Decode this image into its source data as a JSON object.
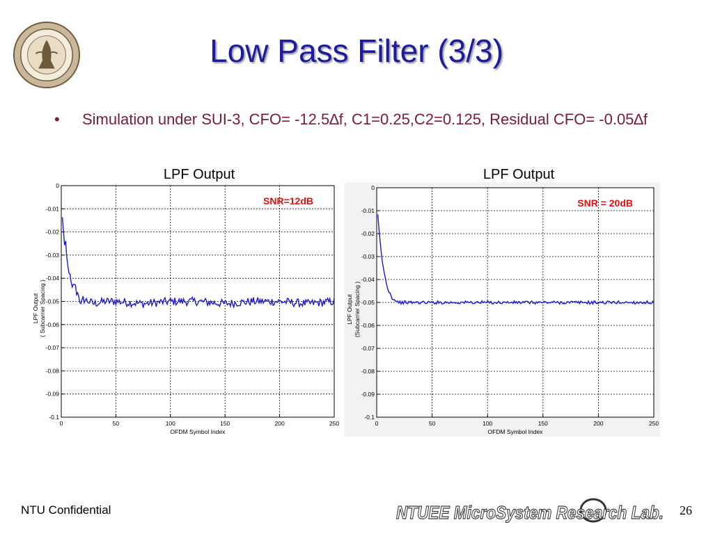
{
  "slide": {
    "title": "Low Pass Filter (3/3)",
    "bullet_marker": "•",
    "bullet_text": "Simulation under SUI-3, CFO= -12.5∆f, C1=0.25,C2=0.125, Residual CFO= -0.05∆f",
    "footer_left": "NTU Confidential",
    "footer_lab": "NTUEE MicroSystem Research Lab.",
    "page_number": "26"
  },
  "colors": {
    "title": "#1c1c9c",
    "bullet": "#7a1a3a",
    "series": "#1a1ad0",
    "annotation": "#e01010"
  },
  "chart_data": [
    {
      "type": "line",
      "title": "LPF Output",
      "xlabel": "OFDM Symbol Index",
      "ylabel_lines": [
        "LPF Output",
        "( Subcarrier Spacing )"
      ],
      "annotation": "SNR=12dB",
      "xlim": [
        0,
        250
      ],
      "ylim": [
        -0.1,
        0
      ],
      "xticks": [
        "0",
        "50",
        "100",
        "150",
        "200",
        "250"
      ],
      "yticks": [
        "0",
        "-0.01",
        "-0.02",
        "-0.03",
        "-0.04",
        "-0.05",
        "-0.06",
        "-0.07",
        "-0.08",
        "-0.09",
        "-0.1"
      ],
      "grid": true,
      "series": [
        {
          "start": -0.014,
          "settle": -0.0505,
          "noise_amplitude": 0.0018,
          "x": [
            1,
            2,
            3,
            4,
            5,
            6,
            8,
            10,
            12,
            14,
            16,
            18,
            20,
            25,
            30,
            40,
            50,
            75,
            100,
            125,
            150,
            175,
            200,
            225,
            250
          ],
          "y": [
            -0.014,
            -0.019,
            -0.026,
            -0.025,
            -0.031,
            -0.035,
            -0.039,
            -0.045,
            -0.042,
            -0.046,
            -0.047,
            -0.052,
            -0.049,
            -0.05,
            -0.051,
            -0.05,
            -0.05,
            -0.051,
            -0.05,
            -0.05,
            -0.051,
            -0.05,
            -0.05,
            -0.051,
            -0.05
          ]
        }
      ]
    },
    {
      "type": "line",
      "title": "LPF Output",
      "xlabel": "OFDM Symbol Index",
      "ylabel_lines": [
        "LPF Output",
        "(Subcarrier Spacing )"
      ],
      "annotation": "SNR = 20dB",
      "xlim": [
        0,
        250
      ],
      "ylim": [
        -0.1,
        0
      ],
      "xticks": [
        "0",
        "50",
        "100",
        "150",
        "200",
        "250"
      ],
      "yticks": [
        "0",
        "-0.01",
        "-0.02",
        "-0.03",
        "-0.04",
        "-0.05",
        "-0.06",
        "-0.07",
        "-0.08",
        "-0.09",
        "-0.1"
      ],
      "grid": true,
      "series": [
        {
          "start": -0.012,
          "settle": -0.05,
          "noise_amplitude": 0.0007,
          "x": [
            1,
            2,
            3,
            4,
            5,
            6,
            8,
            10,
            12,
            14,
            16,
            18,
            20,
            25,
            30,
            40,
            50,
            75,
            100,
            125,
            150,
            175,
            200,
            225,
            250
          ],
          "y": [
            -0.012,
            -0.018,
            -0.023,
            -0.028,
            -0.032,
            -0.035,
            -0.04,
            -0.044,
            -0.046,
            -0.048,
            -0.049,
            -0.049,
            -0.05,
            -0.05,
            -0.05,
            -0.05,
            -0.05,
            -0.05,
            -0.05,
            -0.05,
            -0.05,
            -0.05,
            -0.05,
            -0.05,
            -0.05
          ]
        }
      ]
    }
  ]
}
